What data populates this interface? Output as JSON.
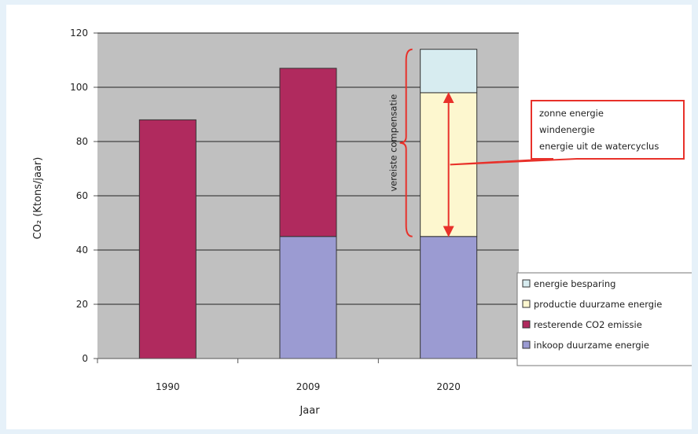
{
  "chart_data": {
    "type": "bar",
    "stacked": true,
    "categories": [
      "1990",
      "2009",
      "2020"
    ],
    "series": [
      {
        "name": "inkoop duurzame energie",
        "color": "#9b9bd2",
        "values": [
          0,
          45,
          45
        ]
      },
      {
        "name": "resterende CO2 emissie",
        "color": "#b02a5e",
        "values": [
          88,
          62,
          0
        ]
      },
      {
        "name": "productie duurzame energie",
        "color": "#fdf7cf",
        "values": [
          0,
          0,
          53
        ]
      },
      {
        "name": "energie besparing",
        "color": "#d7ecf0",
        "values": [
          0,
          0,
          16
        ]
      }
    ],
    "legend_order": [
      "energie besparing",
      "productie duurzame energie",
      "resterende CO2 emissie",
      "inkoop duurzame energie"
    ],
    "xlabel": "Jaar",
    "ylabel": "CO₂ (Ktons/jaar)",
    "ylim": [
      0,
      120
    ],
    "yticks": [
      "0",
      "20",
      "40",
      "60",
      "80",
      "100",
      "120"
    ],
    "grid": true,
    "plot_background": "#c0c0c0",
    "legend_position": "bottom-right",
    "annotations": {
      "bracket_label": "vereiste compensatie",
      "callout_lines": [
        "zonne energie",
        "windenergie",
        "energie uit de watercyclus"
      ],
      "arrow_range": [
        45,
        98
      ],
      "bracket_range": [
        45,
        114
      ],
      "accent_color": "#e8312a"
    }
  }
}
